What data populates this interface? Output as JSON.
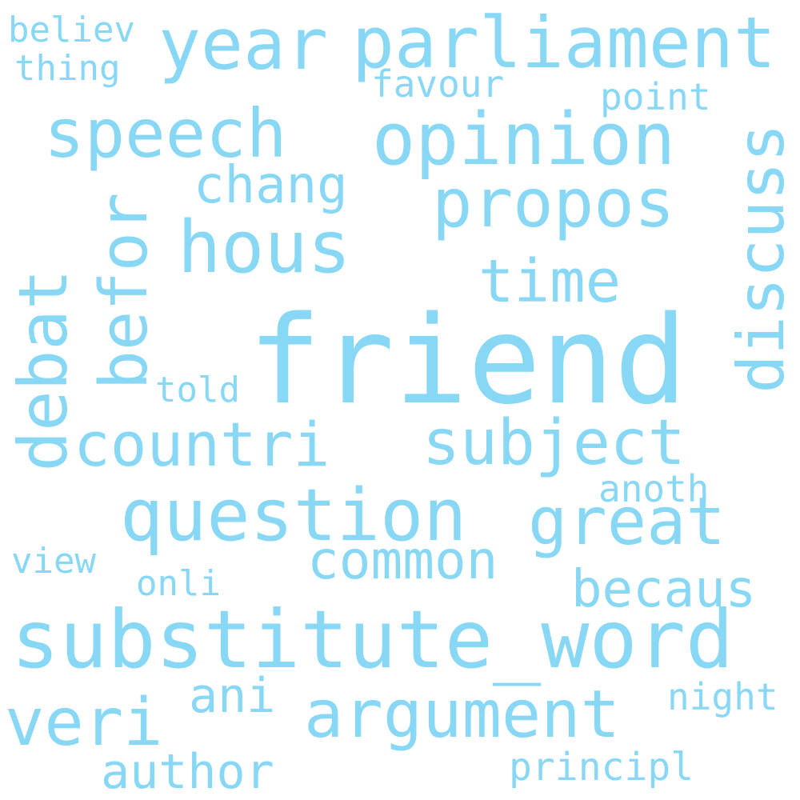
{
  "color": "#87d7f5",
  "background": "#ffffff",
  "words": {
    "friend": "friend",
    "substitute_word": "substitute_word",
    "parliament": "parliament",
    "year": "year",
    "question": "question",
    "opinion": "opinion",
    "speech": "speech",
    "hous": "hous",
    "propos": "propos",
    "argument": "argument",
    "great": "great",
    "subject": "subject",
    "countri": "countri",
    "veri": "veri",
    "time": "time",
    "common": "common",
    "becaus": "becaus",
    "chang": "chang",
    "author": "author",
    "ani": "ani",
    "principl": "principl",
    "favour": "favour",
    "point": "point",
    "anoth": "anoth",
    "night": "night",
    "told": "told",
    "onli": "onli",
    "view": "view",
    "believ": "believ",
    "thing": "thing",
    "discuss": "discuss",
    "befor": "befor",
    "debat": "debat"
  }
}
